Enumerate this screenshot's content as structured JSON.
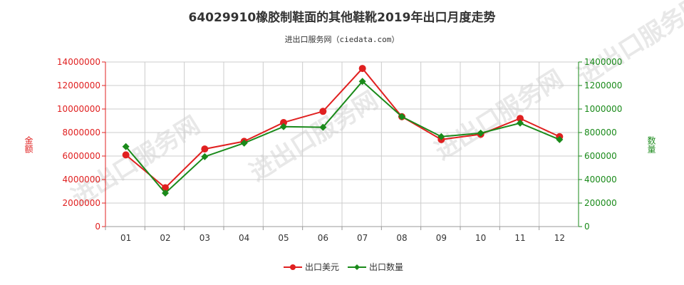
{
  "title": "64029910橡胶制鞋面的其他鞋靴2019年出口月度走势",
  "subtitle": "进出口服务网（ciedata.com）",
  "watermark": "进出口服务网",
  "colors": {
    "left_axis": "#e02020",
    "right_axis": "#1a8a1a",
    "series_value": "#e02020",
    "series_quantity": "#1a8a1a",
    "grid": "#cccccc"
  },
  "chart_data": {
    "type": "line",
    "title": "64029910橡胶制鞋面的其他鞋靴2019年出口月度走势",
    "subtitle": "进出口服务网（ciedata.com）",
    "categories": [
      "01",
      "02",
      "03",
      "04",
      "05",
      "06",
      "07",
      "08",
      "09",
      "10",
      "11",
      "12"
    ],
    "left_axis": {
      "label": "金额",
      "ylim": [
        0,
        14000000
      ],
      "ticks": [
        "0",
        "2000000",
        "4000000",
        "6000000",
        "8000000",
        "10000000",
        "12000000",
        "14000000"
      ]
    },
    "right_axis": {
      "label": "数量",
      "ylim": [
        0,
        1400000
      ],
      "ticks": [
        "0",
        "200000",
        "400000",
        "600000",
        "800000",
        "1000000",
        "1200000",
        "1400000"
      ]
    },
    "series": [
      {
        "name": "出口美元",
        "axis": "left",
        "color": "#e02020",
        "values": [
          6100000,
          3300000,
          6600000,
          7250000,
          8850000,
          9800000,
          13450000,
          9350000,
          7400000,
          7850000,
          9200000,
          7650000
        ]
      },
      {
        "name": "出口数量",
        "axis": "right",
        "color": "#1a8a1a",
        "values": [
          680000,
          285000,
          595000,
          710000,
          850000,
          845000,
          1235000,
          935000,
          765000,
          795000,
          880000,
          740000
        ]
      }
    ],
    "grid": true,
    "legend_position": "bottom"
  }
}
